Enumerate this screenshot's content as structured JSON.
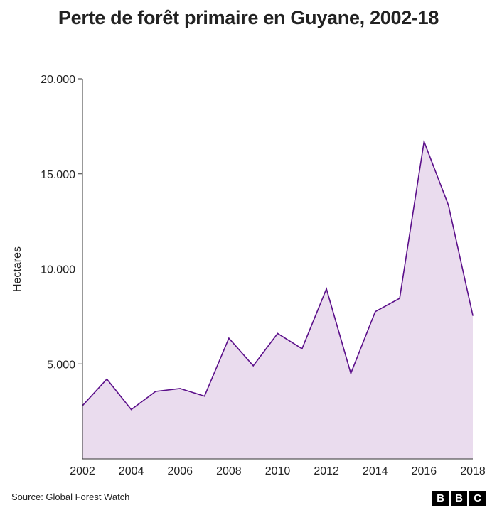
{
  "chart_data": {
    "type": "area",
    "title": "Perte de forêt primaire en Guyane, 2002-18",
    "ylabel": "Hectares",
    "xlabel": "",
    "x": [
      2002,
      2003,
      2004,
      2005,
      2006,
      2007,
      2008,
      2009,
      2010,
      2011,
      2012,
      2013,
      2014,
      2015,
      2016,
      2017,
      2018
    ],
    "series": [
      {
        "values": [
          2800,
          4200,
          2600,
          3550,
          3700,
          3300,
          6350,
          4900,
          6600,
          5800,
          8950,
          4500,
          7750,
          8450,
          16700,
          13350,
          7550
        ]
      }
    ],
    "xlim": [
      2002,
      2018
    ],
    "ylim": [
      0,
      20000
    ],
    "xticks": [
      2002,
      2004,
      2006,
      2008,
      2010,
      2012,
      2014,
      2016,
      2018
    ],
    "yticks": [
      5000,
      10000,
      15000,
      20000
    ],
    "xtick_labels": [
      "2002",
      "2004",
      "2006",
      "2008",
      "2010",
      "2012",
      "2014",
      "2016",
      "2018"
    ],
    "ytick_labels": [
      "5.000",
      "10.000",
      "15.000",
      "20.000"
    ],
    "grid": false,
    "line_color": "#5b0f8a",
    "fill_color": "#eadcee"
  },
  "source": "Source: Global Forest Watch",
  "logo": {
    "letters": [
      "B",
      "B",
      "C"
    ]
  }
}
